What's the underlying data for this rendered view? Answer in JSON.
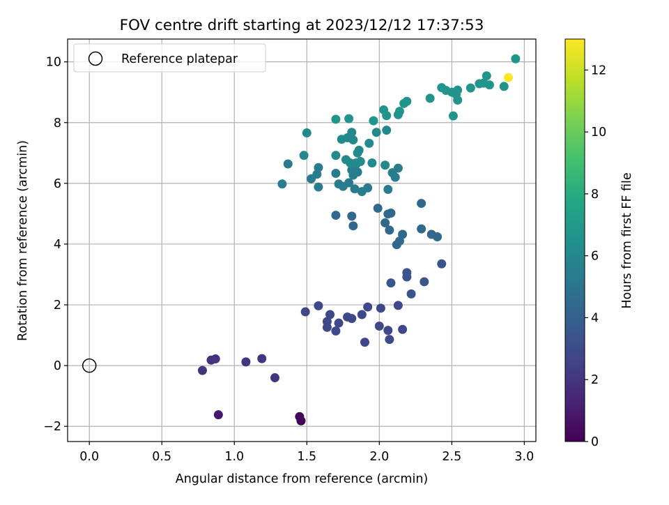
{
  "chart_data": {
    "type": "scatter",
    "title": "FOV centre drift starting at 2023/12/12 17:37:53",
    "xlabel": "Angular distance from reference (arcmin)",
    "ylabel": "Rotation from reference (arcmin)",
    "xlim": [
      -0.15,
      3.08
    ],
    "ylim": [
      -2.5,
      10.75
    ],
    "xticks": [
      "0.0",
      "0.5",
      "1.0",
      "1.5",
      "2.0",
      "2.5",
      "3.0"
    ],
    "yticks": [
      "−2",
      "0",
      "2",
      "4",
      "6",
      "8",
      "10"
    ],
    "grid": true,
    "legend": {
      "position": "top-left",
      "entries": [
        "Reference platepar"
      ]
    },
    "reference_point": {
      "x": 0.0,
      "y": 0.0
    },
    "colorbar": {
      "label": "Hours from first FF file",
      "colormap": "viridis",
      "range": [
        0,
        13
      ],
      "ticks": [
        "0",
        "2",
        "4",
        "6",
        "8",
        "10",
        "12"
      ]
    },
    "points": [
      [
        1.45,
        -1.68,
        0.2
      ],
      [
        1.46,
        -1.82,
        0.2
      ],
      [
        0.89,
        -1.62,
        0.9
      ],
      [
        0.78,
        -0.16,
        1.9
      ],
      [
        0.84,
        0.18,
        1.9
      ],
      [
        0.87,
        0.22,
        1.9
      ],
      [
        1.08,
        0.12,
        2.0
      ],
      [
        1.19,
        0.23,
        2.0
      ],
      [
        1.28,
        -0.4,
        2.0
      ],
      [
        1.49,
        1.77,
        2.8
      ],
      [
        1.58,
        1.97,
        2.8
      ],
      [
        1.64,
        1.45,
        2.8
      ],
      [
        1.64,
        1.26,
        2.8
      ],
      [
        1.66,
        1.68,
        2.8
      ],
      [
        1.7,
        1.14,
        2.8
      ],
      [
        1.72,
        1.4,
        2.8
      ],
      [
        1.78,
        1.6,
        2.8
      ],
      [
        1.81,
        1.55,
        2.8
      ],
      [
        1.88,
        1.68,
        2.8
      ],
      [
        1.9,
        0.77,
        2.8
      ],
      [
        1.92,
        1.93,
        2.8
      ],
      [
        2.0,
        1.3,
        2.8
      ],
      [
        2.01,
        1.89,
        2.8
      ],
      [
        2.06,
        1.16,
        2.8
      ],
      [
        2.07,
        0.86,
        2.8
      ],
      [
        2.13,
        1.98,
        2.8
      ],
      [
        2.16,
        1.19,
        2.8
      ],
      [
        2.08,
        2.72,
        3.4
      ],
      [
        2.19,
        3.06,
        3.4
      ],
      [
        2.19,
        2.92,
        3.4
      ],
      [
        2.22,
        2.36,
        3.4
      ],
      [
        2.31,
        2.76,
        3.4
      ],
      [
        2.43,
        3.35,
        3.4
      ],
      [
        1.7,
        4.95,
        4.4
      ],
      [
        1.81,
        4.92,
        4.4
      ],
      [
        1.82,
        4.6,
        4.4
      ],
      [
        1.99,
        5.18,
        4.4
      ],
      [
        2.04,
        4.7,
        4.4
      ],
      [
        2.06,
        4.99,
        4.4
      ],
      [
        2.07,
        4.46,
        4.4
      ],
      [
        2.08,
        5.02,
        4.4
      ],
      [
        2.12,
        3.98,
        4.4
      ],
      [
        2.14,
        4.1,
        4.4
      ],
      [
        2.16,
        4.32,
        4.4
      ],
      [
        2.29,
        5.34,
        4.4
      ],
      [
        2.29,
        4.5,
        4.4
      ],
      [
        2.36,
        4.32,
        4.4
      ],
      [
        2.4,
        4.24,
        4.4
      ],
      [
        1.33,
        5.98,
        5.4
      ],
      [
        1.37,
        6.64,
        5.4
      ],
      [
        1.53,
        6.15,
        5.4
      ],
      [
        1.57,
        6.3,
        5.4
      ],
      [
        1.58,
        6.52,
        5.4
      ],
      [
        1.58,
        5.88,
        5.4
      ],
      [
        1.7,
        6.33,
        5.4
      ],
      [
        1.72,
        5.98,
        5.4
      ],
      [
        1.75,
        5.9,
        5.4
      ],
      [
        1.79,
        6.02,
        5.4
      ],
      [
        1.81,
        6.44,
        5.4
      ],
      [
        1.82,
        6.27,
        5.4
      ],
      [
        1.83,
        5.82,
        5.4
      ],
      [
        1.84,
        6.63,
        5.4
      ],
      [
        1.85,
        6.37,
        5.4
      ],
      [
        1.88,
        5.73,
        5.4
      ],
      [
        1.92,
        5.85,
        5.4
      ],
      [
        2.06,
        5.8,
        5.4
      ],
      [
        2.09,
        6.35,
        5.4
      ],
      [
        2.11,
        6.2,
        5.4
      ],
      [
        2.13,
        6.5,
        5.4
      ],
      [
        1.48,
        6.92,
        6.1
      ],
      [
        1.5,
        7.66,
        6.1
      ],
      [
        1.7,
        6.92,
        6.1
      ],
      [
        1.74,
        7.45,
        6.1
      ],
      [
        1.77,
        6.78,
        6.1
      ],
      [
        1.78,
        7.5,
        6.1
      ],
      [
        1.8,
        6.67,
        6.1
      ],
      [
        1.81,
        7.68,
        6.1
      ],
      [
        1.82,
        7.43,
        6.1
      ],
      [
        1.84,
        6.67,
        6.1
      ],
      [
        1.85,
        7.0,
        6.1
      ],
      [
        1.86,
        7.09,
        6.1
      ],
      [
        1.87,
        6.72,
        6.1
      ],
      [
        1.93,
        7.32,
        6.1
      ],
      [
        1.95,
        6.67,
        6.1
      ],
      [
        1.98,
        7.68,
        6.1
      ],
      [
        2.04,
        6.6,
        6.1
      ],
      [
        2.05,
        7.75,
        6.1
      ],
      [
        1.7,
        8.11,
        6.7
      ],
      [
        1.79,
        8.13,
        6.7
      ],
      [
        1.96,
        8.06,
        6.7
      ],
      [
        2.03,
        8.42,
        6.7
      ],
      [
        2.05,
        8.23,
        6.7
      ],
      [
        2.13,
        8.26,
        6.7
      ],
      [
        2.14,
        8.37,
        6.7
      ],
      [
        2.17,
        8.63,
        6.7
      ],
      [
        2.19,
        8.7,
        6.7
      ],
      [
        2.35,
        8.8,
        6.7
      ],
      [
        2.43,
        9.15,
        6.7
      ],
      [
        2.46,
        9.06,
        6.7
      ],
      [
        2.5,
        9.0,
        6.7
      ],
      [
        2.51,
        8.22,
        6.7
      ],
      [
        2.53,
        8.93,
        6.7
      ],
      [
        2.54,
        9.07,
        6.7
      ],
      [
        2.54,
        8.74,
        6.7
      ],
      [
        2.63,
        9.14,
        6.7
      ],
      [
        2.69,
        9.28,
        6.7
      ],
      [
        2.72,
        9.3,
        6.7
      ],
      [
        2.74,
        9.54,
        6.7
      ],
      [
        2.76,
        9.24,
        6.7
      ],
      [
        2.86,
        9.19,
        6.7
      ],
      [
        2.94,
        10.1,
        6.7
      ],
      [
        2.89,
        9.48,
        13.0
      ]
    ]
  }
}
